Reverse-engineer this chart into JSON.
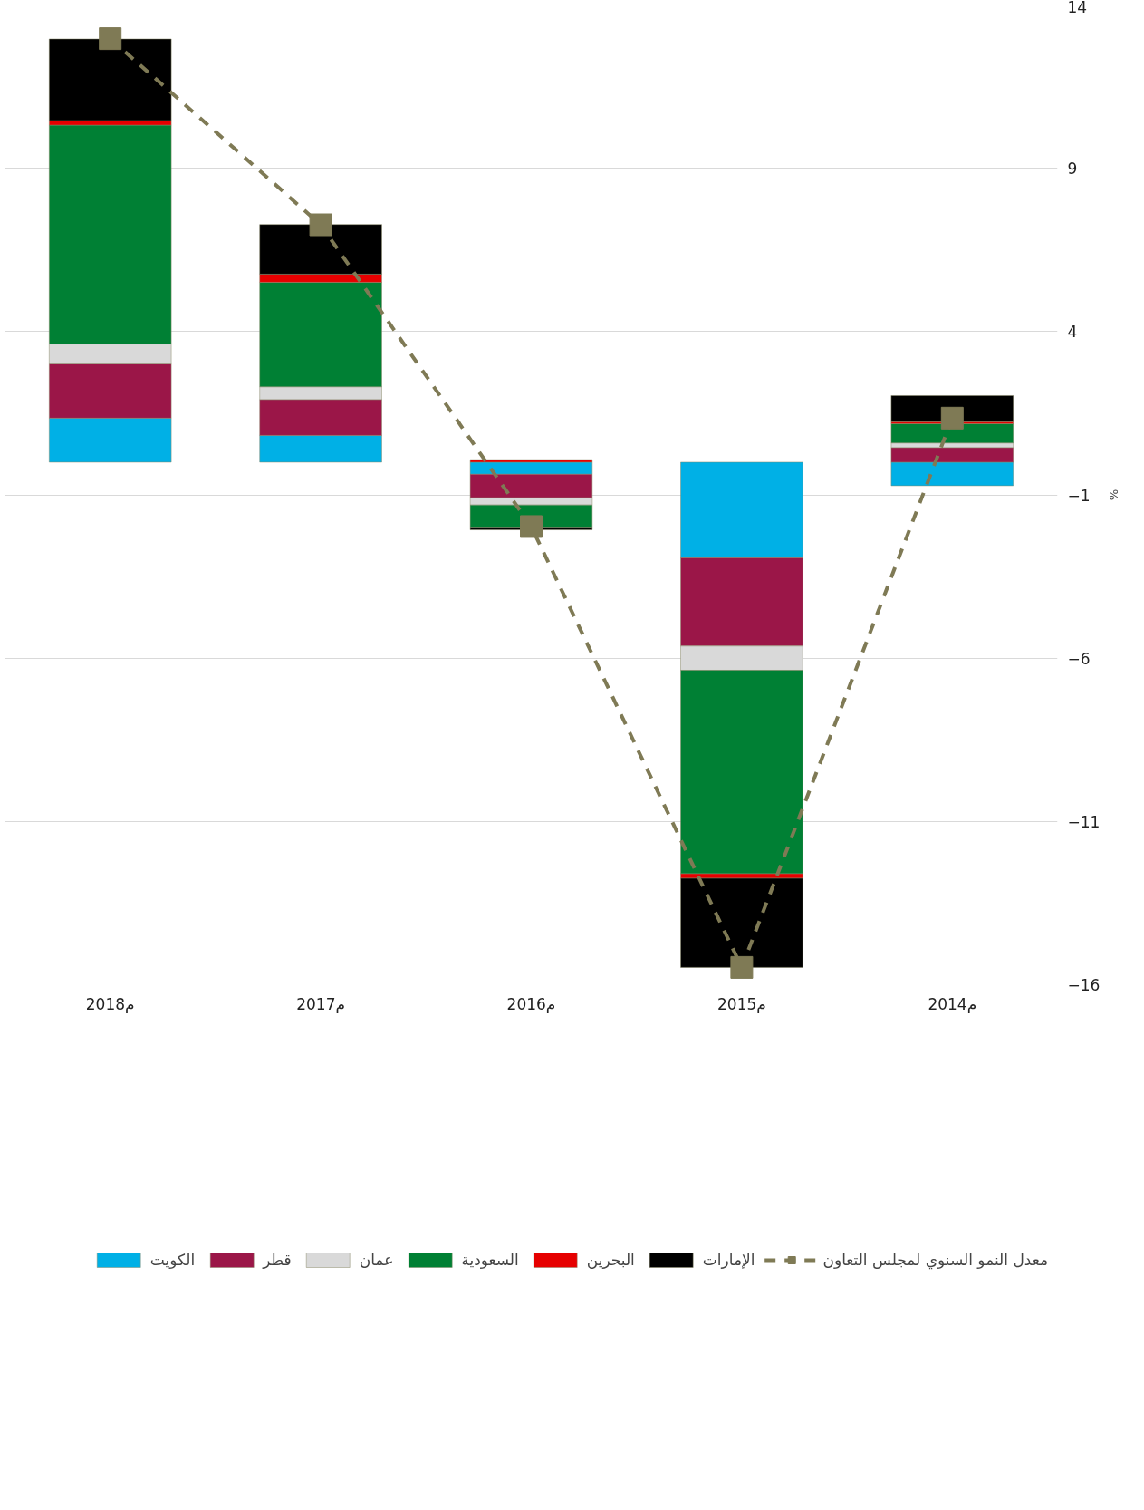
{
  "chart_data": {
    "type": "bar",
    "stacked": true,
    "categories": [
      "2018م",
      "2017م",
      "2016م",
      "2015م",
      "2014م"
    ],
    "ylabel": "%",
    "ylim": [
      -16,
      14
    ],
    "yticks": [
      -16,
      -11,
      -6,
      -1,
      4,
      9,
      14
    ],
    "grid": "y",
    "legend": "bottom",
    "series": [
      {
        "name": "الكويت",
        "color": "#00b0e6",
        "values": [
          1.35,
          0.82,
          -0.37,
          -2.93,
          -0.72
        ]
      },
      {
        "name": "قطر",
        "color": "#9b1648",
        "values": [
          1.66,
          1.1,
          -0.72,
          -2.7,
          0.45
        ]
      },
      {
        "name": "عمان",
        "color": "#d9d9d9",
        "values": [
          0.61,
          0.39,
          -0.22,
          -0.74,
          0.14
        ]
      },
      {
        "name": "السعودية",
        "color": "#008034",
        "values": [
          6.7,
          3.2,
          -0.68,
          -6.23,
          0.59
        ]
      },
      {
        "name": "البحرين",
        "color": "#e60000",
        "values": [
          0.14,
          0.25,
          0.08,
          -0.14,
          0.06
        ]
      },
      {
        "name": "الإمارات",
        "color": "#000000",
        "values": [
          2.5,
          1.52,
          -0.08,
          -2.73,
          0.8
        ]
      },
      {
        "name": "معدل النمو السنوي لمجلس التعاون",
        "type": "line",
        "color": "#7f7a55",
        "marker": "square",
        "line_style": "dashed",
        "values": [
          12.97,
          7.27,
          -1.97,
          -15.47,
          1.35
        ]
      }
    ]
  }
}
